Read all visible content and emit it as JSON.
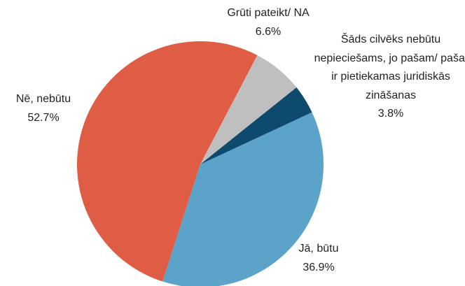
{
  "chart_data": {
    "type": "pie",
    "categories": [
      "Jā, būtu",
      "Nē, nebūtu",
      "Grūti pateikt/ NA",
      "Šāds cilvēks nebūtu nepieciešams, jo pašam/ pašai ir pietiekamas juridiskās zināšanas"
    ],
    "values": [
      36.9,
      52.7,
      6.6,
      3.8
    ],
    "value_labels": [
      "36.9%",
      "52.7%",
      "6.6%",
      "3.8%"
    ],
    "colors": [
      "#5ba3c9",
      "#e05d45",
      "#bfbfbf",
      "#0d4a6e"
    ]
  }
}
